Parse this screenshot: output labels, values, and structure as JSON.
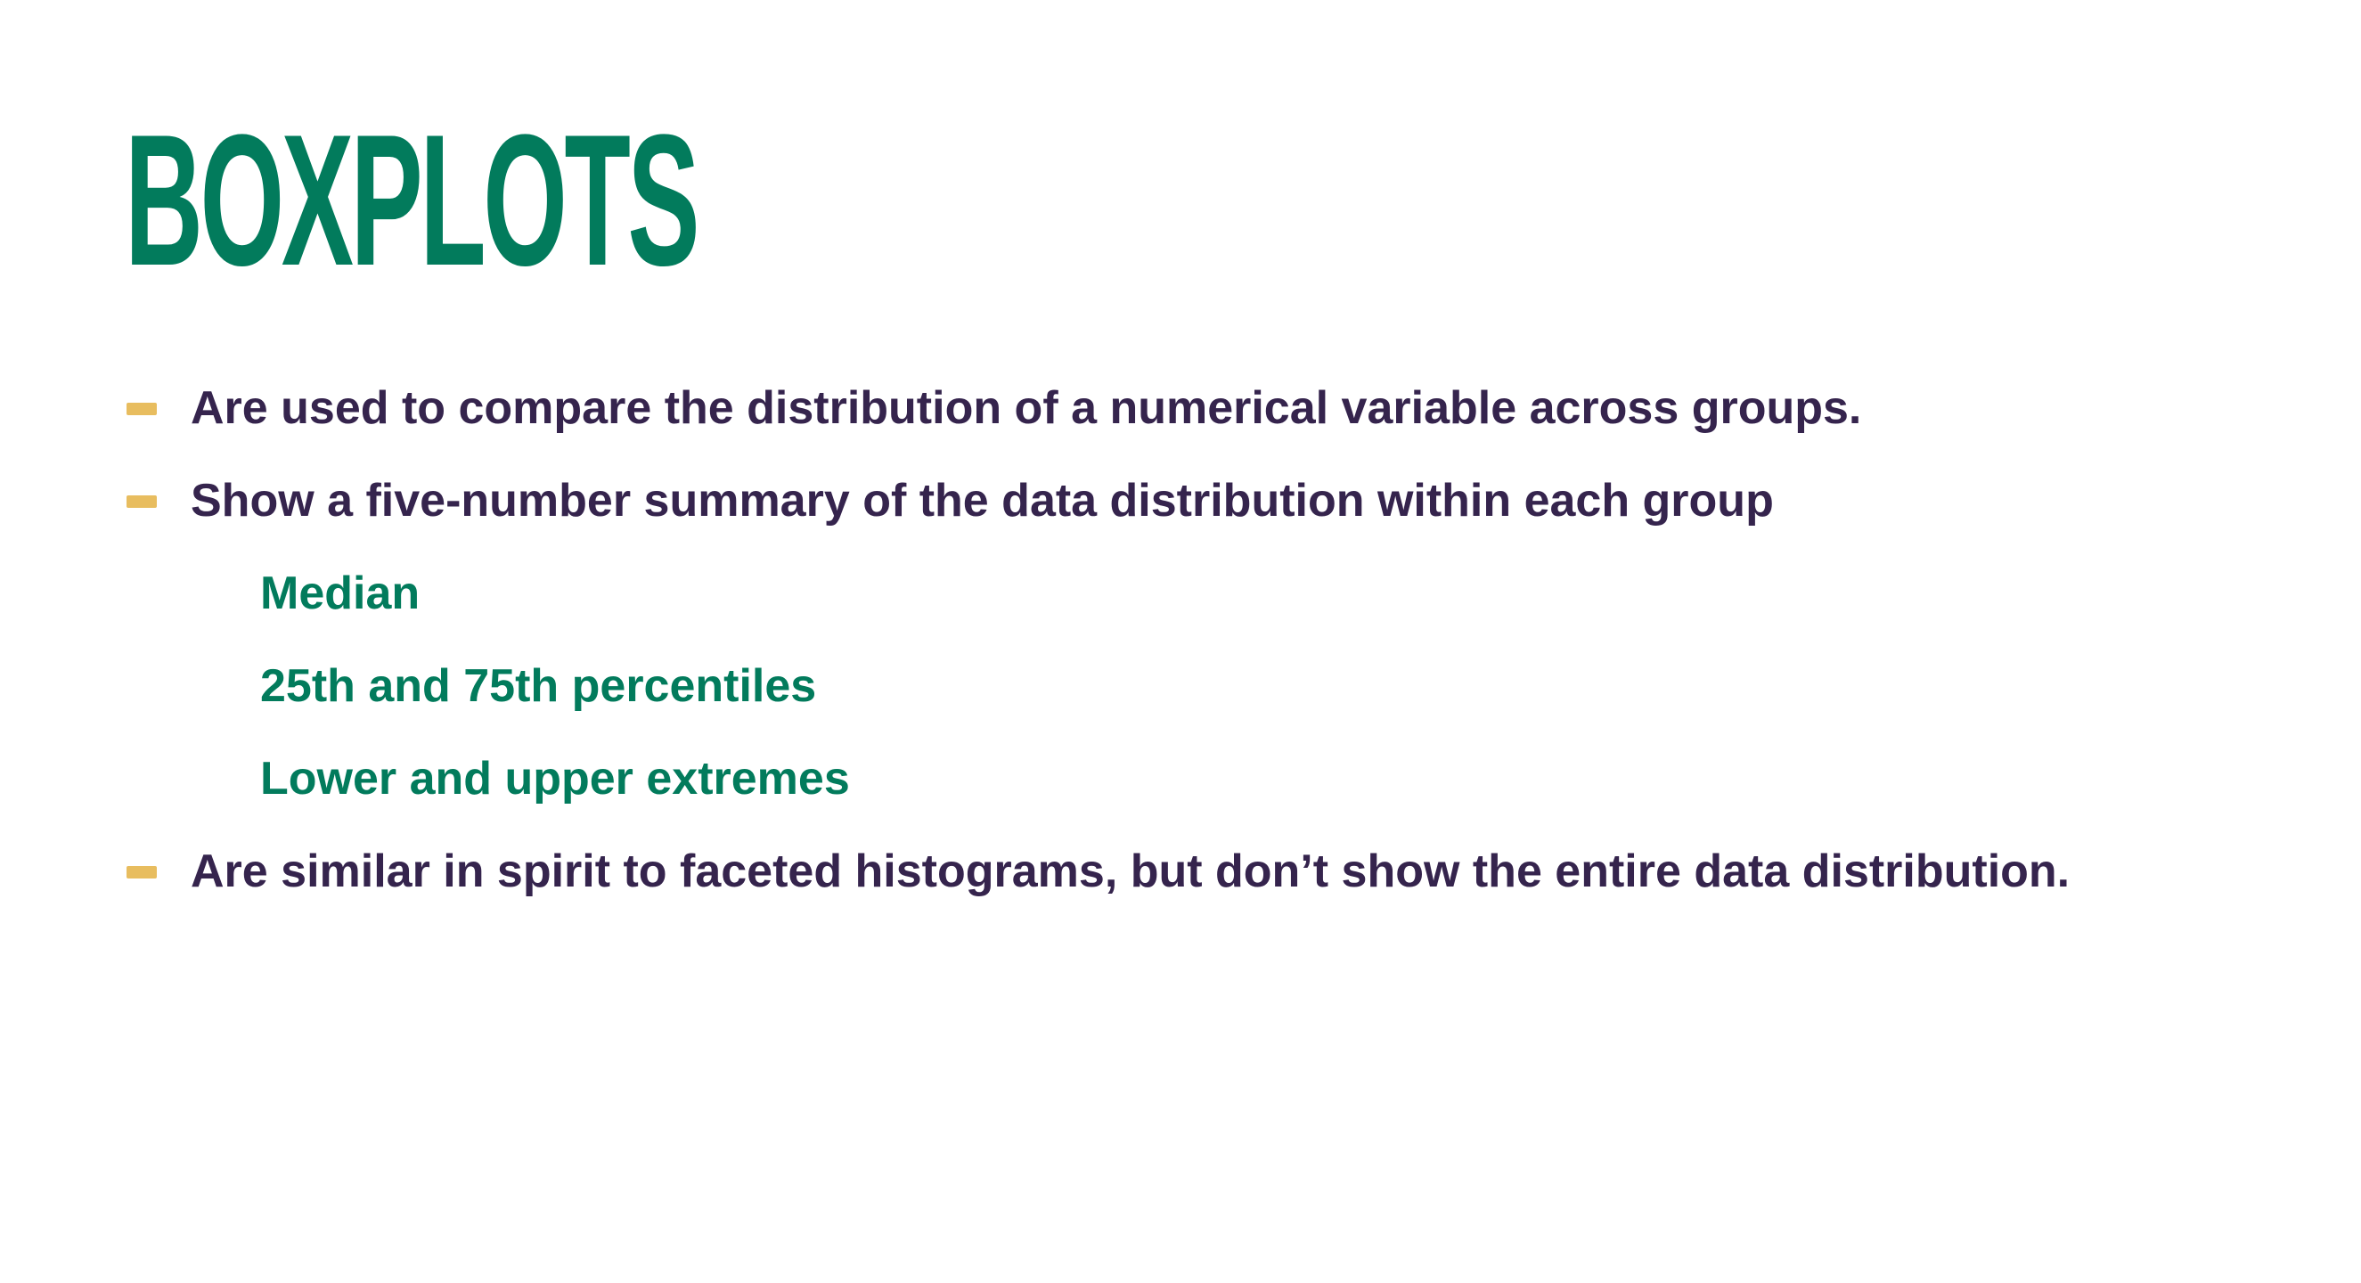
{
  "slide": {
    "title": "BOXPLOTS",
    "bullets": [
      {
        "text": "Are used to compare the distribution of a numerical variable across groups."
      },
      {
        "text": "Show a five-number summary of the data distribution within each group"
      },
      {
        "text": "Are similar in spirit to faceted histograms, but don’t show the entire data distribution."
      }
    ],
    "sub_items": [
      {
        "text": "Median"
      },
      {
        "text": "25th and 75th percentiles"
      },
      {
        "text": "Lower and upper extremes"
      }
    ]
  },
  "colors": {
    "title": "#027b5c",
    "body_text": "#35244d",
    "sub_text": "#027b5c",
    "dash": "#e8bd5f",
    "background": "#ffffff"
  }
}
